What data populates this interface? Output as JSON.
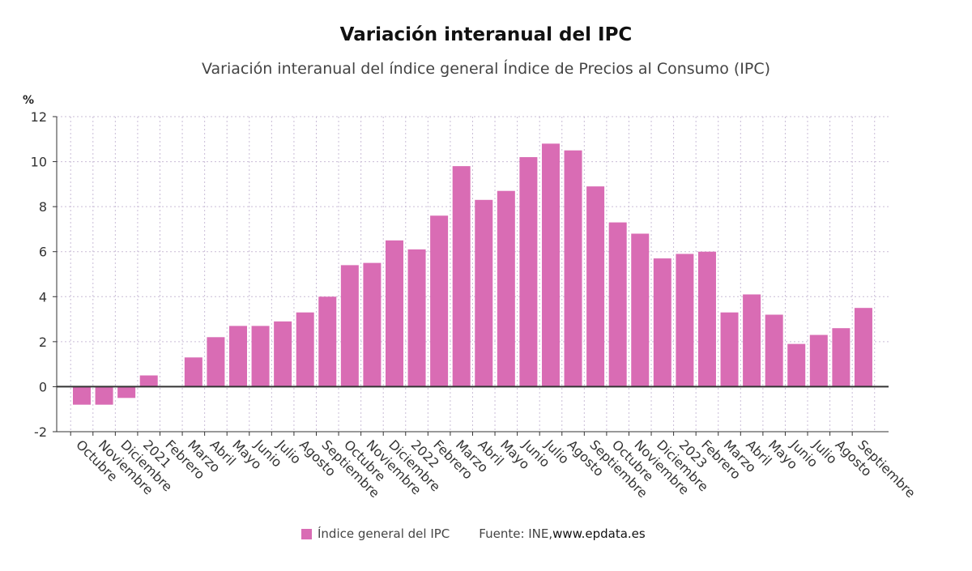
{
  "title": "Variación interanual del IPC",
  "subtitle": "Variación interanual del índice general Índice de Precios al Consumo (IPC)",
  "legend": {
    "label": "Índice general del IPC",
    "source_prefix": "Fuente: INE, ",
    "source_url": "www.epdata.es"
  },
  "colors": {
    "bar": "#d96cb4",
    "axis": "#333333",
    "grid": "#c9bcd6"
  },
  "chart_data": {
    "type": "bar",
    "title": "Variación interanual del IPC",
    "ylabel": "%",
    "ylim": [
      -2,
      12
    ],
    "yticks": [
      -2,
      0,
      2,
      4,
      6,
      8,
      10,
      12
    ],
    "grid": true,
    "legend_placement": "bottom",
    "categories": [
      "Octubre",
      "Noviembre",
      "Diciembre",
      "2021",
      "Febrero",
      "Marzo",
      "Abril",
      "Mayo",
      "Junio",
      "Julio",
      "Agosto",
      "Septiembre",
      "Octubre",
      "Noviembre",
      "Diciembre",
      "2022",
      "Febrero",
      "Marzo",
      "Abril",
      "Mayo",
      "Junio",
      "Julio",
      "Agosto",
      "Septiembre",
      "Octubre",
      "Noviembre",
      "Diciembre",
      "2023",
      "Febrero",
      "Marzo",
      "Abril",
      "Mayo",
      "Junio",
      "Julio",
      "Agosto",
      "Septiembre"
    ],
    "series": [
      {
        "name": "Índice general del IPC",
        "values": [
          -0.8,
          -0.8,
          -0.5,
          0.5,
          0.0,
          1.3,
          2.2,
          2.7,
          2.7,
          2.9,
          3.3,
          4.0,
          5.4,
          5.5,
          6.5,
          6.1,
          7.6,
          9.8,
          8.3,
          8.7,
          10.2,
          10.8,
          10.5,
          8.9,
          7.3,
          6.8,
          5.7,
          5.9,
          6.0,
          3.3,
          4.1,
          3.2,
          1.9,
          2.3,
          2.6,
          3.5
        ]
      }
    ]
  }
}
